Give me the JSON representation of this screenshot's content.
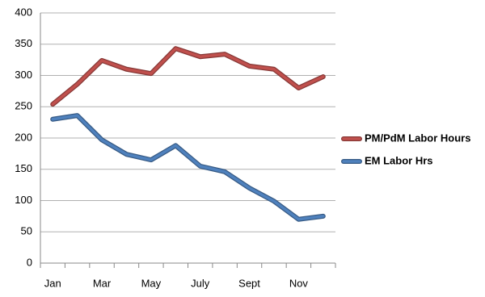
{
  "chart_data": {
    "type": "line",
    "categories": [
      "Jan",
      null,
      "Mar",
      null,
      "May",
      null,
      "July",
      null,
      "Sept",
      null,
      "Nov",
      null
    ],
    "series": [
      {
        "name": "PM/PdM Labor Hours",
        "color": "#c0504d",
        "values": [
          254,
          286,
          324,
          310,
          303,
          343,
          330,
          334,
          315,
          310,
          280,
          298
        ]
      },
      {
        "name": "EM Labor Hrs",
        "color": "#4f81bd",
        "values": [
          230,
          236,
          197,
          174,
          165,
          188,
          155,
          146,
          120,
          99,
          70,
          75
        ]
      }
    ],
    "ylim": [
      0,
      400
    ],
    "yticks": [
      0,
      50,
      100,
      150,
      200,
      250,
      300,
      350,
      400
    ],
    "grid": true,
    "legend": "right"
  }
}
